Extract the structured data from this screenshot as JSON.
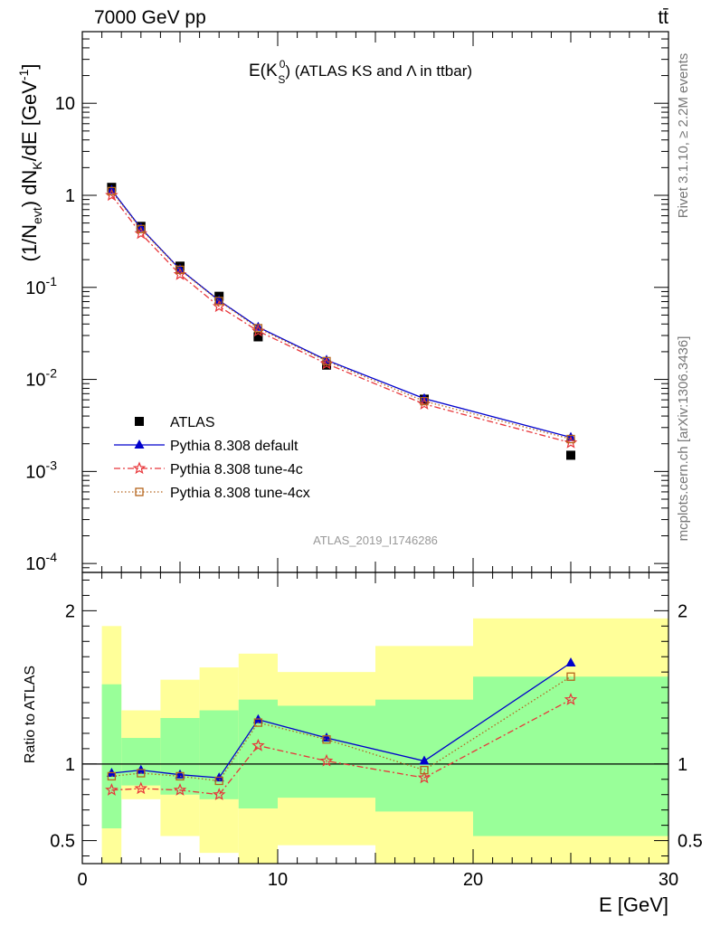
{
  "header": {
    "energy_label": "7000 GeV pp",
    "process_label": "tt̄"
  },
  "side_labels": {
    "rivet": "Rivet 3.1.10, ≥ 2.2M events",
    "mcplots": "mcplots.cern.ch [arXiv:1306.3436]"
  },
  "analysis_id": "ATLAS_2019_I1746286",
  "chart_data": [
    {
      "type": "scatter",
      "title_main": "E(K",
      "title_sub": "S",
      "title_sup": "0",
      "title_rest": ") (ATLAS KS and Λ in ttbar)",
      "ylabel": "(1/N_evt) dN_K/dE [GeV^-1]",
      "yscale": "log",
      "xlim": [
        0,
        30
      ],
      "ylim": [
        8e-05,
        60
      ],
      "yticks": [
        {
          "value": 10,
          "label": "10"
        },
        {
          "value": 1,
          "label": "1"
        },
        {
          "value": 0.1,
          "label": "10^-1"
        },
        {
          "value": 0.01,
          "label": "10^-2"
        },
        {
          "value": 0.001,
          "label": "10^-3"
        },
        {
          "value": 0.0001,
          "label": "10^-4"
        }
      ],
      "legend_position": "bottom-left",
      "series": [
        {
          "name": "ATLAS",
          "style": "data",
          "color": "#000000",
          "marker": "square",
          "x": [
            1.5,
            3,
            5,
            7,
            9,
            12.5,
            17.5,
            25
          ],
          "y": [
            1.22,
            0.46,
            0.17,
            0.08,
            0.029,
            0.0143,
            0.0061,
            0.0015
          ]
        },
        {
          "name": "Pythia 8.308 default",
          "style": "solid",
          "color": "#0000cc",
          "marker": "triangle",
          "x": [
            1.5,
            3,
            5,
            7,
            9,
            12.5,
            17.5,
            25
          ],
          "y": [
            1.14,
            0.44,
            0.157,
            0.072,
            0.037,
            0.0162,
            0.0062,
            0.00235
          ]
        },
        {
          "name": "Pythia 8.308 tune-4c",
          "style": "dashdot",
          "color": "#e8363a",
          "marker": "star",
          "x": [
            1.5,
            3,
            5,
            7,
            9,
            12.5,
            17.5,
            25
          ],
          "y": [
            1.0,
            0.385,
            0.138,
            0.062,
            0.0335,
            0.0148,
            0.0054,
            0.00205
          ]
        },
        {
          "name": "Pythia 8.308 tune-4cx",
          "style": "dotted",
          "color": "#b5651d",
          "marker": "open-square",
          "x": [
            1.5,
            3,
            5,
            7,
            9,
            12.5,
            17.5,
            25
          ],
          "y": [
            1.11,
            0.43,
            0.155,
            0.071,
            0.036,
            0.0158,
            0.0058,
            0.00225
          ]
        }
      ]
    },
    {
      "type": "scatter",
      "xlabel": "E [GeV]",
      "ylabel": "Ratio to ATLAS",
      "xlim": [
        0,
        30
      ],
      "ylim": [
        0.35,
        2.25
      ],
      "xticks": [
        0,
        10,
        20,
        30
      ],
      "yticks": [
        0.5,
        1,
        2
      ],
      "bands": [
        {
          "x0": 1,
          "x1": 2,
          "green": [
            0.58,
            1.52
          ],
          "yellow": [
            0.35,
            1.9
          ]
        },
        {
          "x0": 2,
          "x1": 4,
          "green": [
            0.86,
            1.17
          ],
          "yellow": [
            0.77,
            1.35
          ]
        },
        {
          "x0": 4,
          "x1": 6,
          "green": [
            0.8,
            1.3
          ],
          "yellow": [
            0.53,
            1.55
          ]
        },
        {
          "x0": 6,
          "x1": 8,
          "green": [
            0.77,
            1.35
          ],
          "yellow": [
            0.42,
            1.63
          ]
        },
        {
          "x0": 8,
          "x1": 10,
          "green": [
            0.71,
            1.42
          ],
          "yellow": [
            0.35,
            1.72
          ]
        },
        {
          "x0": 10,
          "x1": 15,
          "green": [
            0.78,
            1.38
          ],
          "yellow": [
            0.47,
            1.6
          ]
        },
        {
          "x0": 15,
          "x1": 20,
          "green": [
            0.69,
            1.42
          ],
          "yellow": [
            0.35,
            1.77
          ]
        },
        {
          "x0": 20,
          "x1": 30,
          "green": [
            0.53,
            1.57
          ],
          "yellow": [
            0.35,
            1.95
          ]
        }
      ],
      "series": [
        {
          "name": "Pythia 8.308 default",
          "style": "solid",
          "color": "#0000cc",
          "marker": "triangle",
          "x": [
            1.5,
            3,
            5,
            7,
            9,
            12.5,
            17.5,
            25
          ],
          "y": [
            0.94,
            0.96,
            0.93,
            0.91,
            1.29,
            1.17,
            1.02,
            1.66
          ]
        },
        {
          "name": "Pythia 8.308 tune-4c",
          "style": "dashdot",
          "color": "#e8363a",
          "marker": "star",
          "x": [
            1.5,
            3,
            5,
            7,
            9,
            12.5,
            17.5,
            25
          ],
          "y": [
            0.83,
            0.84,
            0.83,
            0.8,
            1.12,
            1.02,
            0.91,
            1.42
          ]
        },
        {
          "name": "Pythia 8.308 tune-4cx",
          "style": "dotted",
          "color": "#b5651d",
          "marker": "open-square",
          "x": [
            1.5,
            3,
            5,
            7,
            9,
            12.5,
            17.5,
            25
          ],
          "y": [
            0.92,
            0.94,
            0.92,
            0.89,
            1.27,
            1.16,
            0.96,
            1.57
          ]
        }
      ]
    }
  ],
  "colors": {
    "band_green": "#99ff99",
    "band_yellow": "#ffff99"
  }
}
